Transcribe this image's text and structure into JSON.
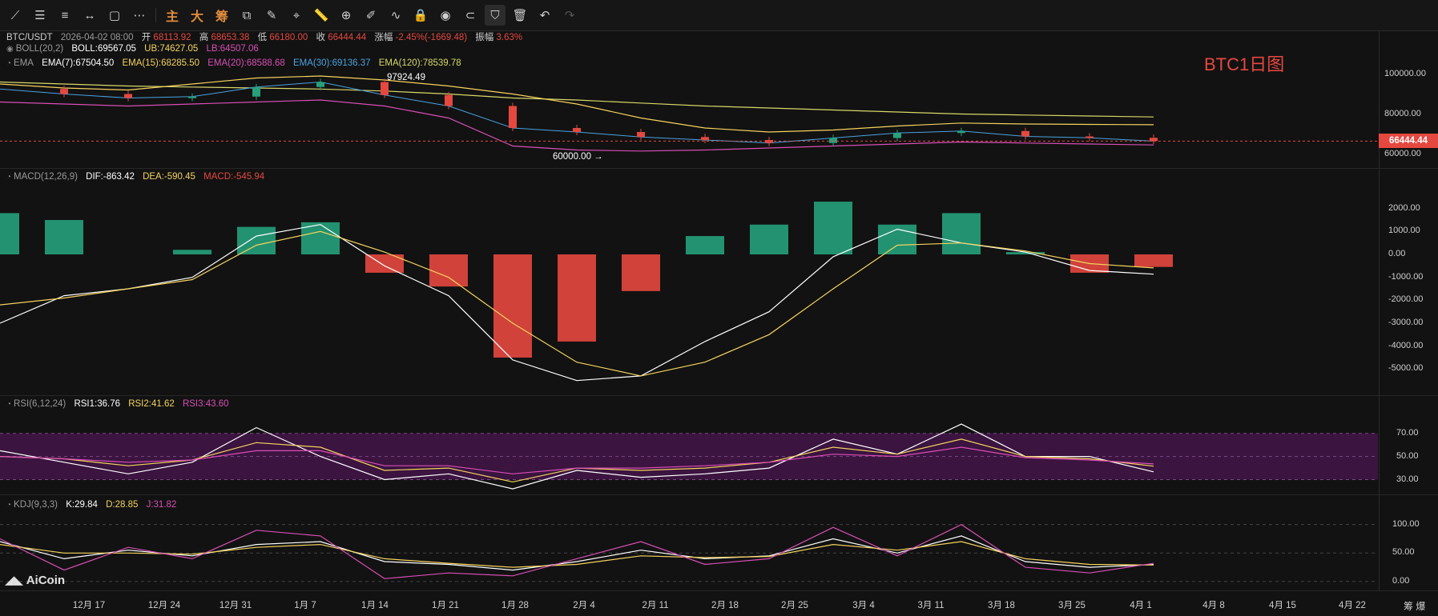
{
  "toolbar": {
    "tools": [
      {
        "name": "trend-line-icon",
        "glyph": "⟋"
      },
      {
        "name": "horizontal-line-icon",
        "glyph": "☰"
      },
      {
        "name": "parallel-lines-icon",
        "glyph": "≡"
      },
      {
        "name": "segment-icon",
        "glyph": "↔"
      },
      {
        "name": "rectangle-icon",
        "glyph": "▢"
      },
      {
        "name": "more-shapes-icon",
        "glyph": "⋯"
      }
    ],
    "text_tools": [
      "主",
      "大",
      "筹"
    ],
    "tools2": [
      {
        "name": "snapshot-icon",
        "glyph": "⧉"
      },
      {
        "name": "brush-icon",
        "glyph": "✎"
      },
      {
        "name": "crosshair-icon",
        "glyph": "⌖"
      },
      {
        "name": "ruler-icon",
        "glyph": "📏"
      },
      {
        "name": "zoom-icon",
        "glyph": "⊕"
      },
      {
        "name": "pen-icon",
        "glyph": "✐"
      },
      {
        "name": "indicator-icon",
        "glyph": "∿"
      },
      {
        "name": "lock-icon",
        "glyph": "🔒"
      },
      {
        "name": "eye-icon",
        "glyph": "◉"
      },
      {
        "name": "magnet-icon",
        "glyph": "⊂"
      },
      {
        "name": "filter-icon",
        "glyph": "⛉"
      },
      {
        "name": "trash-icon",
        "glyph": "🗑"
      },
      {
        "name": "undo-icon",
        "glyph": "↶"
      },
      {
        "name": "redo-icon",
        "glyph": "↷"
      }
    ]
  },
  "header": {
    "symbol": "BTC/USDT",
    "datetime": "2026-04-02 08:00",
    "open_label": "开",
    "open": "68113.92",
    "high_label": "高",
    "high": "68653.38",
    "low_label": "低",
    "low": "66180.00",
    "close_label": "收",
    "close": "66444.44",
    "change_label": "涨幅",
    "change": "-2.45%(-1669.48)",
    "amplitude_label": "振幅",
    "amplitude": "3.63%"
  },
  "boll": {
    "label": "BOLL(20,2)",
    "boll": "BOLL:69567.05",
    "ub": "UB:74627.05",
    "lb": "LB:64507.06"
  },
  "ema": {
    "label": "EMA",
    "e7": "EMA(7):67504.50",
    "e15": "EMA(15):68285.50",
    "e20": "EMA(20):68588.68",
    "e30": "EMA(30):69136.37",
    "e120": "EMA(120):78539.78"
  },
  "macd": {
    "label": "MACD(12,26,9)",
    "dif": "DIF:-863.42",
    "dea": "DEA:-590.45",
    "macd": "MACD:-545.94"
  },
  "rsi": {
    "label": "RSI(6,12,24)",
    "r1": "RSI1:36.76",
    "r2": "RSI2:41.62",
    "r3": "RSI3:43.60"
  },
  "kdj": {
    "label": "KDJ(9,3,3)",
    "k": "K:29.84",
    "d": "D:28.85",
    "j": "J:31.82"
  },
  "price_axis": [
    "100000.00",
    "80000.00",
    "60000.00"
  ],
  "last_price": "66444.44",
  "macd_axis": [
    "2000.00",
    "1000.00",
    "0.00",
    "-1000.00",
    "-2000.00",
    "-3000.00",
    "-4000.00",
    "-5000.00"
  ],
  "rsi_axis": [
    "70.00",
    "50.00",
    "30.00"
  ],
  "kdj_axis": [
    "100.00",
    "50.00",
    "0.00"
  ],
  "x_axis": [
    "12月 17",
    "12月 24",
    "12月 31",
    "1月 7",
    "1月 14",
    "1月 21",
    "1月 28",
    "2月 4",
    "2月 11",
    "2月 18",
    "2月 25",
    "3月 4",
    "3月 11",
    "3月 18",
    "3月 25",
    "4月 1",
    "4月 8",
    "4月 15",
    "4月 22"
  ],
  "annotations": {
    "high_marker": "97924.49",
    "low_marker": "60000.00 →"
  },
  "watermark": "BTC1日图",
  "logo": "AiCoin",
  "corner": "筹 爆",
  "colors": {
    "up": "#26a17b",
    "down": "#e5483f",
    "ema7": "#ffffff",
    "ema15": "#f4d35e",
    "ema20": "#d84fb5",
    "ema30": "#4aa3df",
    "ema120": "#d8d86a",
    "rsi_band": "#4a1650"
  },
  "chart_data": {
    "type": "candlestick",
    "dates": [
      "12-12",
      "12-17",
      "12-24",
      "12-31",
      "1-07",
      "1-14",
      "1-21",
      "1-28",
      "2-04",
      "2-06",
      "2-11",
      "2-18",
      "2-25",
      "3-04",
      "3-11",
      "3-18",
      "3-25",
      "4-01",
      "4-02"
    ],
    "close": [
      92500,
      90000,
      88000,
      88700,
      93500,
      96000,
      89500,
      84000,
      73000,
      71000,
      68500,
      67000,
      65500,
      68000,
      70500,
      71500,
      68800,
      68100,
      66444.44
    ],
    "ema120": [
      96000,
      95000,
      94000,
      93500,
      93000,
      92500,
      91500,
      90000,
      88000,
      87000,
      85500,
      84000,
      83000,
      82000,
      81000,
      80000,
      79500,
      79000,
      78539.78
    ],
    "boll_ub": [
      95000,
      93000,
      92000,
      95000,
      98000,
      99000,
      97000,
      94000,
      90000,
      85000,
      78000,
      73000,
      71000,
      72000,
      74000,
      75500,
      75000,
      74800,
      74627.05
    ],
    "boll_lb": [
      86000,
      85000,
      84000,
      85000,
      86000,
      87000,
      84000,
      78000,
      64000,
      62000,
      61500,
      62000,
      63000,
      64000,
      65000,
      66000,
      65500,
      65000,
      64507.06
    ],
    "macd_hist": [
      1800,
      1500,
      0,
      200,
      1200,
      1400,
      -800,
      -1400,
      -4500,
      -3800,
      -1600,
      800,
      1300,
      2300,
      1300,
      1800,
      100,
      -800,
      -546
    ],
    "dif": [
      -3000,
      -1800,
      -1500,
      -1000,
      800,
      1300,
      -500,
      -1800,
      -4600,
      -5500,
      -5300,
      -3800,
      -2500,
      -100,
      1100,
      500,
      100,
      -700,
      -863
    ],
    "dea": [
      -2200,
      -1900,
      -1500,
      -1100,
      400,
      1000,
      100,
      -1000,
      -3000,
      -4700,
      -5300,
      -4700,
      -3500,
      -1500,
      400,
      500,
      150,
      -400,
      -590
    ],
    "rsi1": [
      55,
      45,
      35,
      45,
      75,
      50,
      30,
      35,
      22,
      38,
      32,
      35,
      40,
      65,
      52,
      78,
      50,
      50,
      36.76
    ],
    "rsi2": [
      50,
      48,
      42,
      47,
      62,
      58,
      38,
      40,
      28,
      40,
      38,
      40,
      45,
      58,
      52,
      65,
      50,
      48,
      41.62
    ],
    "rsi3": [
      50,
      48,
      45,
      47,
      55,
      55,
      42,
      42,
      35,
      40,
      40,
      42,
      45,
      52,
      50,
      58,
      49,
      47,
      43.6
    ],
    "k": [
      70,
      40,
      55,
      45,
      65,
      70,
      35,
      30,
      20,
      35,
      55,
      40,
      45,
      75,
      50,
      80,
      35,
      25,
      29.84
    ],
    "d": [
      65,
      50,
      50,
      48,
      60,
      65,
      40,
      32,
      25,
      30,
      45,
      42,
      44,
      65,
      55,
      70,
      40,
      30,
      28.85
    ],
    "j": [
      75,
      20,
      60,
      40,
      90,
      80,
      5,
      15,
      10,
      40,
      70,
      30,
      40,
      95,
      45,
      100,
      25,
      15,
      31.82
    ],
    "price_range": [
      55000,
      105000
    ],
    "macd_range": [
      -6000,
      3000
    ],
    "rsi_range": [
      20,
      85
    ],
    "kdj_range": [
      -10,
      115
    ]
  }
}
